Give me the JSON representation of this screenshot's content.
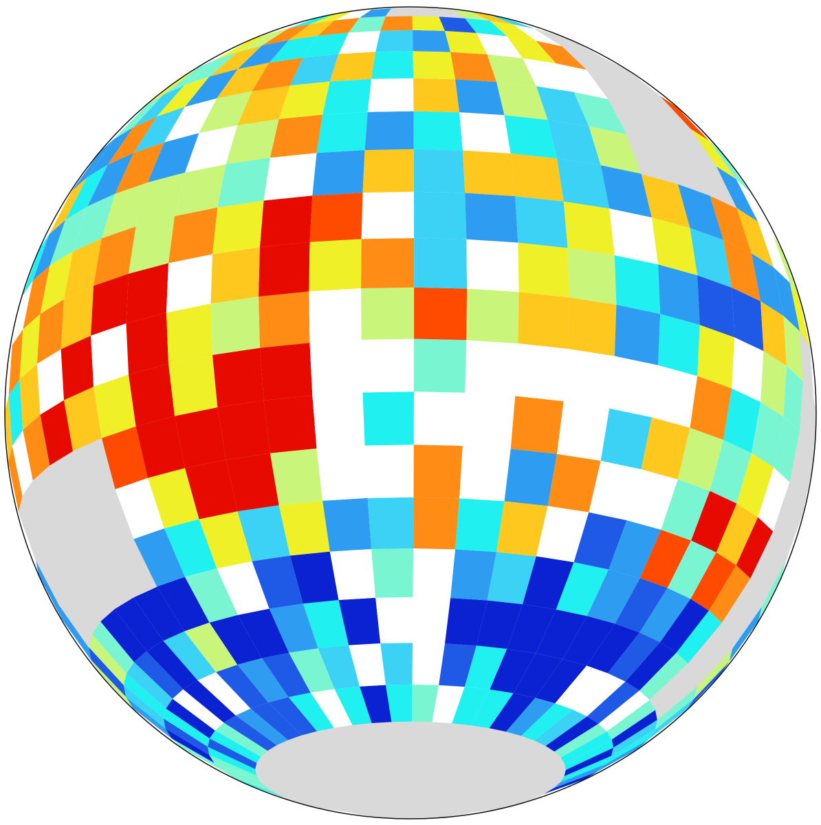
{
  "map": {
    "palette": [
      "#0a22d2",
      "#1e5ae6",
      "#2e9cf0",
      "#3cd2f5",
      "#20f0f0",
      "#7af5d2",
      "#c8f57a",
      "#f0f028",
      "#ffc81e",
      "#ff8c14",
      "#ff4b00",
      "#e60a00",
      "#ffffff"
    ],
    "land_color": "#d9d9d9",
    "edge_color": "#111111"
  }
}
